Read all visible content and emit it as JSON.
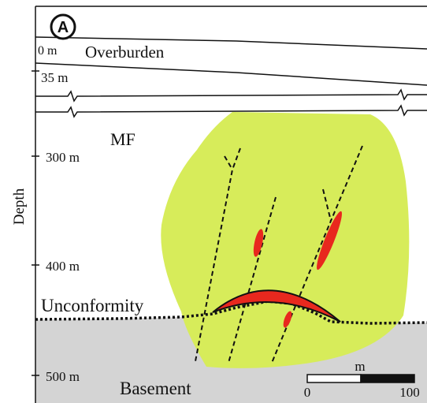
{
  "panel_label": "A",
  "overburden": {
    "top_depth": "0 m",
    "label": "Overburden",
    "base_depth": "35 m"
  },
  "intrusion_label": "MF",
  "depth_axis": {
    "title": "Depth",
    "ticks": [
      "300 m",
      "400 m",
      "500 m"
    ]
  },
  "unconformity_label": "Unconformity",
  "basement_label": "Basement",
  "scale_bar": {
    "unit": "m",
    "start": "0",
    "end": "100"
  }
}
